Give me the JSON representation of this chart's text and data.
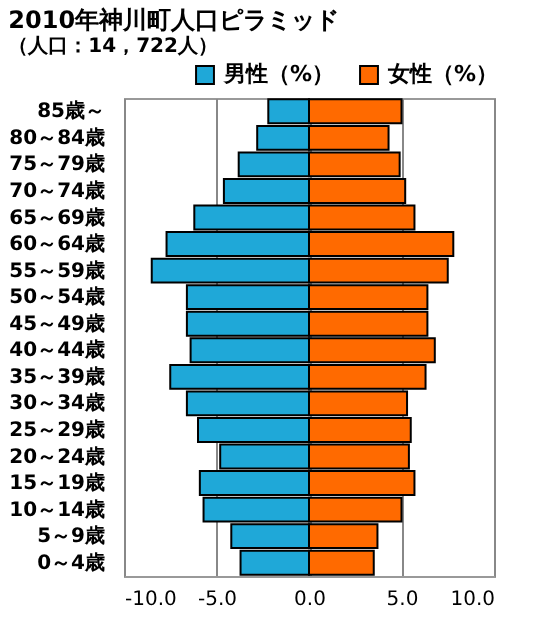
{
  "chart_data": {
    "type": "bar",
    "orientation": "horizontal",
    "title": "2010年神川町人口ピラミッド",
    "subtitle": "（人口：14，722人）",
    "categories": [
      "85歳～",
      "80～84歳",
      "75～79歳",
      "70～74歳",
      "65～69歳",
      "60～64歳",
      "55～59歳",
      "50～54歳",
      "45～49歳",
      "40～44歳",
      "35～39歳",
      "30～34歳",
      "25～29歳",
      "20～24歳",
      "15～19歳",
      "10～14歳",
      "5～9歳",
      "0～4歳"
    ],
    "series": [
      {
        "name": "男性（%）",
        "color": "#1fa8d8",
        "values": [
          -2.2,
          -2.8,
          -3.8,
          -4.6,
          -6.2,
          -7.7,
          -8.5,
          -6.6,
          -6.6,
          -6.4,
          -7.5,
          -6.6,
          -6.0,
          -4.8,
          -5.9,
          -5.7,
          -4.2,
          -3.7
        ]
      },
      {
        "name": "女性（%）",
        "color": "#ff6a00",
        "values": [
          5.0,
          4.3,
          4.9,
          5.2,
          5.7,
          7.8,
          7.5,
          6.4,
          6.4,
          6.8,
          6.3,
          5.3,
          5.5,
          5.4,
          5.7,
          5.0,
          3.7,
          3.5
        ]
      }
    ],
    "xlim": [
      -10,
      10
    ],
    "xticks": [
      {
        "value": -10,
        "label": "-10.0"
      },
      {
        "value": -5,
        "label": "-5.0"
      },
      {
        "value": 0,
        "label": "0.0"
      },
      {
        "value": 5,
        "label": "5.0"
      },
      {
        "value": 10,
        "label": "10.0"
      }
    ],
    "grid": "x",
    "legend": "top right",
    "stacked": true
  }
}
